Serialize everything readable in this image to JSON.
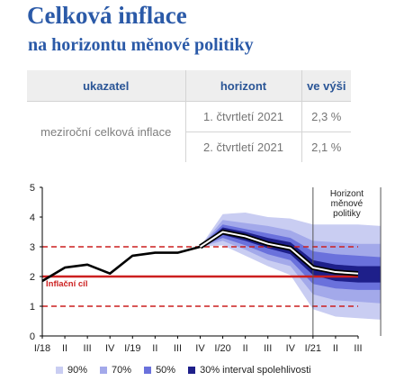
{
  "title": "Celková inflace",
  "subtitle": "na horizontu měnové politiky",
  "table": {
    "headers": [
      "ukazatel",
      "horizont",
      "ve výši"
    ],
    "indicator": "meziroční celková inflace",
    "rows": [
      {
        "horizon": "1. čtvrtletí 2021",
        "value": "2,3 %"
      },
      {
        "horizon": "2. čtvrtletí 2021",
        "value": "2,1 %"
      }
    ]
  },
  "colors": {
    "brand_blue": "#2b5aa8",
    "band_90": "#c9cdf2",
    "band_70": "#a3a9ea",
    "band_50": "#6a71dc",
    "band_30": "#1e1f8a",
    "target_line": "#cc1f1f",
    "forecast_line": "#000000"
  },
  "chart_data": {
    "type": "line",
    "x_tick_labels": [
      "I/18",
      "II",
      "III",
      "IV",
      "I/19",
      "II",
      "III",
      "IV",
      "I/20",
      "II",
      "III",
      "IV",
      "I/21",
      "II",
      "III"
    ],
    "y_ticks": [
      0,
      1,
      2,
      3,
      4,
      5
    ],
    "ylim": [
      0,
      5
    ],
    "grid": false,
    "legend_position": "bottom",
    "series": [
      {
        "kind": "actual",
        "values": [
          1.85,
          2.3,
          2.4,
          2.1,
          2.7,
          2.8,
          2.8,
          3.0,
          3.5,
          3.35,
          3.1,
          2.95,
          2.3,
          2.15,
          2.1
        ]
      }
    ],
    "forecast_start_index": 7,
    "fan_chart": {
      "quarter_index": [
        7,
        8,
        9,
        10,
        11,
        12,
        13,
        14,
        15
      ],
      "upper_90": [
        3.0,
        4.1,
        4.15,
        4.0,
        3.95,
        3.75,
        3.75,
        3.75,
        3.7
      ],
      "upper_70": [
        3.0,
        3.9,
        3.8,
        3.7,
        3.55,
        3.2,
        3.15,
        3.1,
        3.1
      ],
      "upper_50": [
        3.0,
        3.75,
        3.6,
        3.45,
        3.3,
        2.85,
        2.75,
        2.7,
        2.65
      ],
      "upper_30": [
        3.0,
        3.65,
        3.5,
        3.3,
        3.15,
        2.55,
        2.4,
        2.35,
        2.35
      ],
      "lower_30": [
        3.0,
        3.4,
        3.2,
        2.95,
        2.75,
        2.05,
        1.85,
        1.8,
        1.8
      ],
      "lower_50": [
        3.0,
        3.3,
        3.05,
        2.75,
        2.55,
        1.75,
        1.6,
        1.55,
        1.55
      ],
      "lower_70": [
        3.0,
        3.2,
        2.9,
        2.55,
        2.35,
        1.4,
        1.2,
        1.15,
        1.1
      ],
      "lower_90": [
        3.0,
        3.05,
        2.7,
        2.35,
        2.05,
        0.9,
        0.65,
        0.6,
        0.55
      ]
    },
    "inflation_target": 2,
    "tolerance_band": [
      1,
      3
    ],
    "target_label": "Inflační cíl",
    "horizon_label_lines": [
      "Horizont",
      "měnové",
      "politiky"
    ],
    "horizon_interval": [
      12,
      15
    ],
    "legend": [
      "90%",
      "70%",
      "50%",
      "30% interval spolehlivosti"
    ]
  }
}
